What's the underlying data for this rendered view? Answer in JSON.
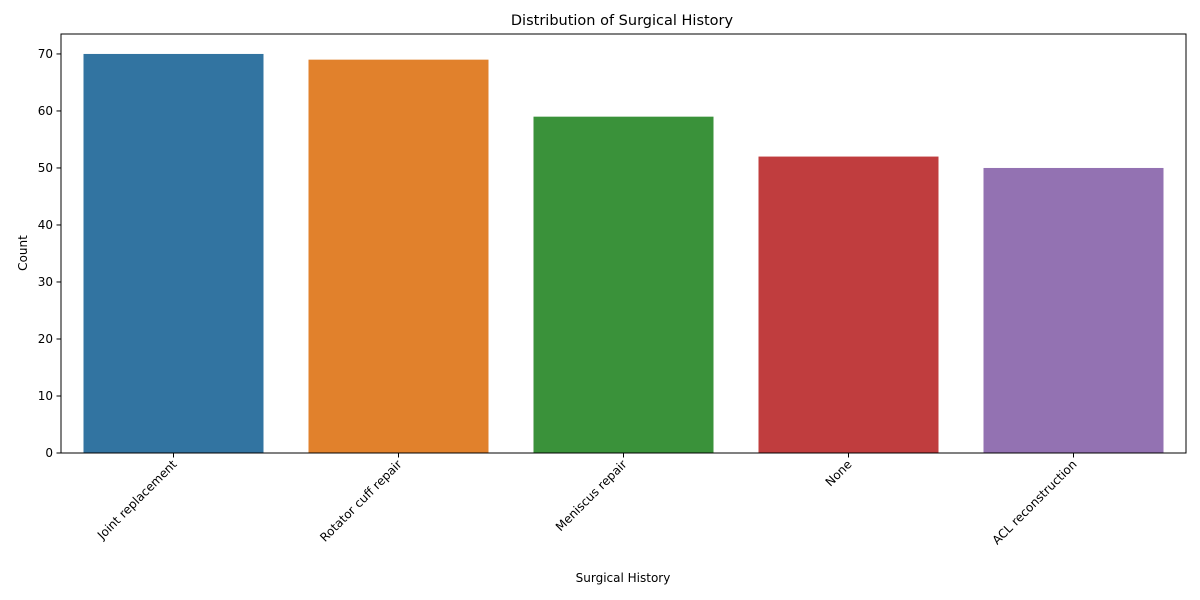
{
  "chart_data": {
    "type": "bar",
    "title": "Distribution of Surgical History",
    "xlabel": "Surgical History",
    "ylabel": "Count",
    "categories": [
      "Joint replacement",
      "Rotator cuff repair",
      "Meniscus repair",
      "None",
      "ACL reconstruction"
    ],
    "values": [
      70,
      69,
      59,
      52,
      50
    ],
    "colors": [
      "#3274a1",
      "#e1812c",
      "#3a923a",
      "#c03d3e",
      "#9372b2"
    ],
    "ylim": [
      0,
      73.5
    ],
    "yticks": [
      0,
      10,
      20,
      30,
      40,
      50,
      60,
      70
    ],
    "grid": false,
    "legend": "none"
  }
}
